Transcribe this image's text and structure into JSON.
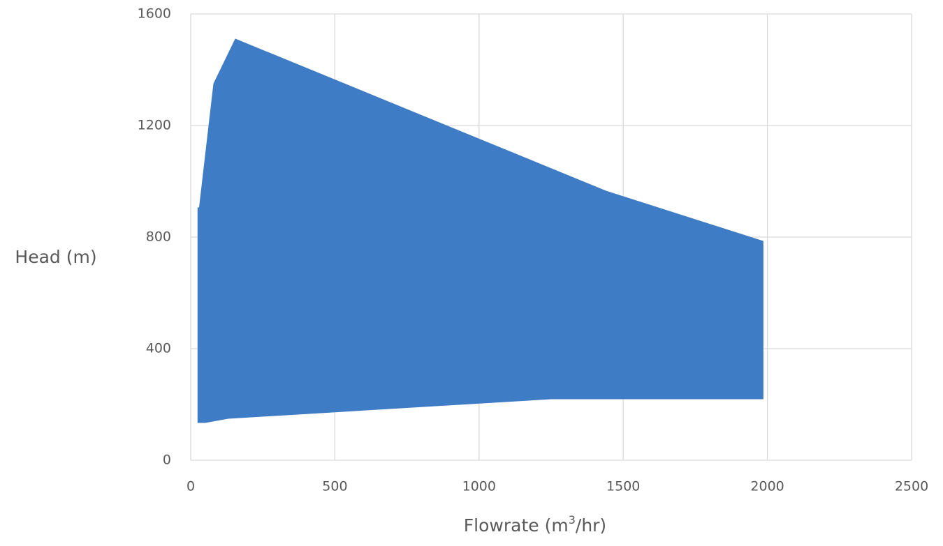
{
  "chart_data": {
    "type": "area",
    "title": "",
    "xlabel": "Flowrate (m3/hr)",
    "xlabel_parts": {
      "base": "Flowrate (m",
      "sup": "3",
      "tail": "/hr)"
    },
    "ylabel": "Head (m)",
    "xlim": [
      0,
      2500
    ],
    "ylim": [
      0,
      1600
    ],
    "x_ticks": [
      0,
      500,
      1000,
      1500,
      2000,
      2500
    ],
    "y_ticks": [
      0,
      400,
      800,
      1200,
      1600
    ],
    "grid": true,
    "legend": "none",
    "series": [
      {
        "fill_color": "#3f7cc6",
        "upper_boundary": [
          {
            "x": 25,
            "y": 905
          },
          {
            "x": 30,
            "y": 905
          },
          {
            "x": 80,
            "y": 1350
          },
          {
            "x": 155,
            "y": 1510
          },
          {
            "x": 1440,
            "y": 965
          },
          {
            "x": 1985,
            "y": 785
          }
        ],
        "lower_boundary": [
          {
            "x": 25,
            "y": 135
          },
          {
            "x": 50,
            "y": 135
          },
          {
            "x": 130,
            "y": 150
          },
          {
            "x": 1250,
            "y": 220
          },
          {
            "x": 1985,
            "y": 220
          }
        ]
      }
    ]
  }
}
